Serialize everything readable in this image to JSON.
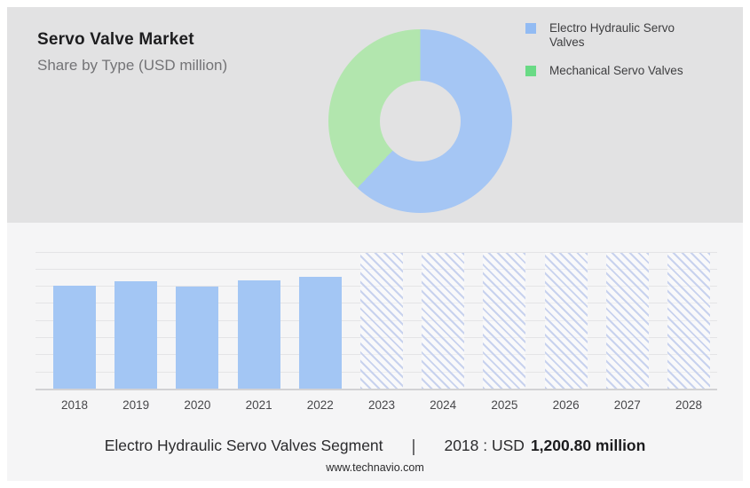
{
  "header": {
    "title": "Servo Valve Market",
    "subtitle": "Share by Type (USD million)"
  },
  "legend": {
    "items": [
      {
        "label": "Electro Hydraulic Servo Valves",
        "color": "#92bbf3"
      },
      {
        "label": "Mechanical Servo Valves",
        "color": "#69da85"
      }
    ]
  },
  "colors": {
    "page_bg": "#ffffff",
    "panel_top_bg": "#e2e2e3",
    "panel_bottom_bg": "#f5f5f6",
    "gridline": "#e4e4e6",
    "baseline": "#d2d2d4",
    "donut_blue": "#a5c6f4",
    "donut_green": "#b2e6ae",
    "bar_blue": "#a3c6f4",
    "hatch_stroke": "#c8d2ee"
  },
  "chart_data": [
    {
      "type": "pie",
      "subtype": "donut",
      "title": "Servo Valve Market — Share by Type (USD million)",
      "legend_position": "right",
      "slices": [
        {
          "label": "Electro Hydraulic Servo Valves",
          "percent": 62,
          "color": "#a5c6f4"
        },
        {
          "label": "Mechanical Servo Valves",
          "percent": 38,
          "color": "#b2e6ae"
        }
      ]
    },
    {
      "type": "bar",
      "title": "Electro Hydraulic Servo Valves Segment (USD million)",
      "categories": [
        "2018",
        "2019",
        "2020",
        "2021",
        "2022",
        "2023",
        "2024",
        "2025",
        "2026",
        "2027",
        "2028"
      ],
      "values": [
        1200.8,
        1250,
        1195,
        1262,
        1300,
        null,
        null,
        null,
        null,
        null,
        null
      ],
      "forecast_years": [
        "2023",
        "2024",
        "2025",
        "2026",
        "2027",
        "2028"
      ],
      "forecast_style": "full-height diagonal hatch placeholder",
      "ylim": [
        0,
        1600
      ],
      "gridline_step": 200,
      "grid": true,
      "bar_color": "#a3c6f4",
      "hatch_color": "#c8d2ee"
    }
  ],
  "footer": {
    "segment_label": "Electro Hydraulic Servo Valves Segment",
    "separator": "|",
    "stat_prefix": "2018 : USD",
    "stat_value": "1,200.80 million",
    "website": "www.technavio.com"
  }
}
